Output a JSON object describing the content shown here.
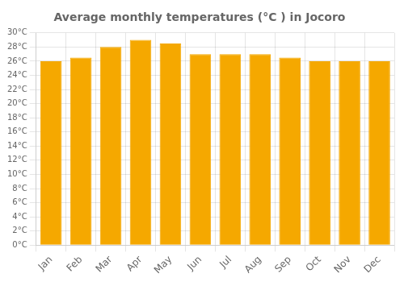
{
  "chart_data": {
    "type": "bar",
    "title": "Average monthly temperatures (°C ) in Jocoro",
    "categories": [
      "Jan",
      "Feb",
      "Mar",
      "Apr",
      "May",
      "Jun",
      "Jul",
      "Aug",
      "Sep",
      "Oct",
      "Nov",
      "Dec"
    ],
    "values": [
      26.0,
      26.5,
      28.0,
      29.0,
      28.5,
      27.0,
      27.0,
      27.0,
      26.5,
      26.0,
      26.0,
      26.0
    ],
    "color": "#F5A800",
    "ylim": [
      0,
      30
    ],
    "yticks": [
      {
        "value": 0,
        "label": "0°C"
      },
      {
        "value": 2,
        "label": "2°C"
      },
      {
        "value": 4,
        "label": "4°C"
      },
      {
        "value": 6,
        "label": "6°C"
      },
      {
        "value": 8,
        "label": "8°C"
      },
      {
        "value": 10,
        "label": "10°C"
      },
      {
        "value": 12,
        "label": "12°C"
      },
      {
        "value": 14,
        "label": "14°C"
      },
      {
        "value": 16,
        "label": "16°C"
      },
      {
        "value": 18,
        "label": "18°C"
      },
      {
        "value": 20,
        "label": "20°C"
      },
      {
        "value": 22,
        "label": "22°C"
      },
      {
        "value": 24,
        "label": "24°C"
      },
      {
        "value": 26,
        "label": "26°C"
      },
      {
        "value": 28,
        "label": "28°C"
      },
      {
        "value": 30,
        "label": "30°C"
      }
    ],
    "grid": true
  }
}
